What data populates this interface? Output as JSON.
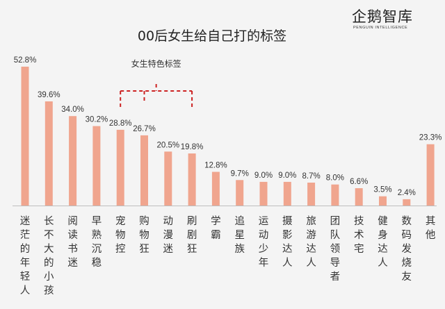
{
  "brand": {
    "name": "企鹅智库",
    "tagline": "PENGUIN INTELLIGENCE"
  },
  "chart_data": {
    "type": "bar",
    "title": "00后女生给自己打的标签",
    "categories": [
      "迷茫的年轻人",
      "长不大的小孩",
      "阅读书迷",
      "早熟沉稳",
      "宠物控",
      "购物狂",
      "动漫迷",
      "刷剧狂",
      "学霸",
      "追星族",
      "运动少年",
      "摄影达人",
      "旅游达人",
      "团队领导者",
      "技术宅",
      "健身达人",
      "数码发烧友",
      "其他"
    ],
    "value_labels": [
      "52.8%",
      "39.6%",
      "34.0%",
      "30.2%",
      "28.8%",
      "26.7%",
      "20.5%",
      "19.8%",
      "12.8%",
      "9.7%",
      "9.0%",
      "9.0%",
      "8.7%",
      "8.0%",
      "6.6%",
      "3.5%",
      "2.4%",
      "23.3%"
    ],
    "values": [
      52.8,
      39.6,
      34.0,
      30.2,
      28.8,
      26.7,
      20.5,
      19.8,
      12.8,
      9.7,
      9.0,
      9.0,
      8.7,
      8.0,
      6.6,
      3.5,
      2.4,
      23.3
    ],
    "unit": "%",
    "ylim": [
      0,
      55
    ],
    "grid": false,
    "bar_color": "#f0a58e",
    "annotation": {
      "text": "女生特色标签",
      "category_indices": [
        4,
        5,
        6,
        7
      ],
      "color": "#cc2222"
    }
  }
}
